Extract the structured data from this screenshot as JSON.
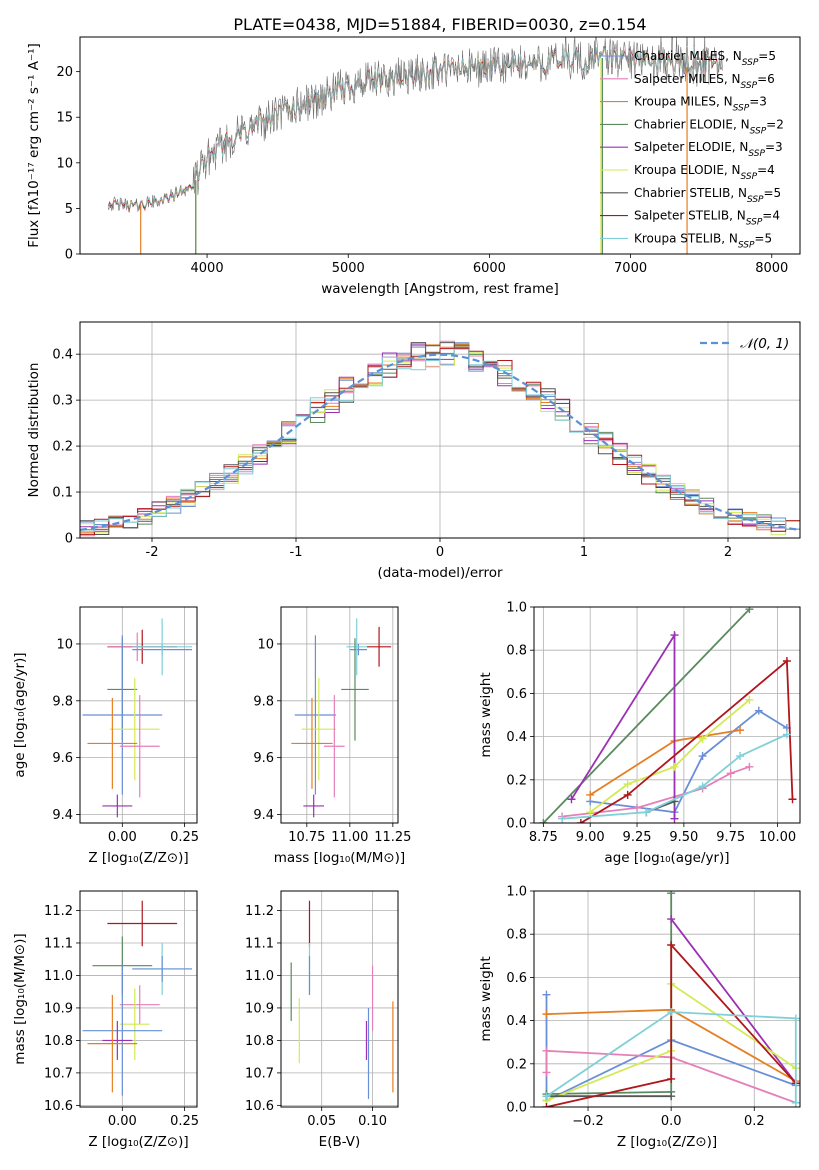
{
  "figure": {
    "title": "PLATE=0438, MJD=51884, FIBERID=0030, z=0.154"
  },
  "legend_colors": [
    "#6a8fd8",
    "#e57fb9",
    "#e67e22",
    "#5a8a5e",
    "#9b30b5",
    "#d3ea55",
    "#555555",
    "#b0161c",
    "#7fd0d8"
  ],
  "chart_data": [
    {
      "id": "spectrum",
      "type": "line",
      "xlabel": "wavelength [Angstrom, rest frame]",
      "ylabel": "Flux [fλ10⁻¹⁷ erg cm⁻² s⁻¹ A⁻¹]",
      "xlim": [
        3100,
        8200
      ],
      "ylim": [
        0,
        23.8
      ],
      "xticks": [
        4000,
        5000,
        6000,
        7000,
        8000
      ],
      "yticks": [
        0,
        5,
        10,
        15,
        20
      ],
      "grid": false,
      "legend_position": "top-right",
      "series": [
        {
          "name": "Chabrier MILES, N_SSP=5",
          "legend": "Chabrier MILES, N",
          "n": "5",
          "color": "#6a8fd8"
        },
        {
          "name": "Salpeter MILES, N_SSP=6",
          "legend": "Salpeter MILES, N",
          "n": "6",
          "color": "#e57fb9"
        },
        {
          "name": "Kroupa MILES, N_SSP=3",
          "legend": "Kroupa MILES, N",
          "n": "3",
          "color": "#e67e22"
        },
        {
          "name": "Chabrier ELODIE, N_SSP=2",
          "legend": "Chabrier ELODIE, N",
          "n": "2",
          "color": "#5a8a5e"
        },
        {
          "name": "Salpeter ELODIE, N_SSP=3",
          "legend": "Salpeter ELODIE, N",
          "n": "3",
          "color": "#9b30b5"
        },
        {
          "name": "Kroupa ELODIE, N_SSP=4",
          "legend": "Kroupa ELODIE, N",
          "n": "4",
          "color": "#d3ea55"
        },
        {
          "name": "Chabrier STELIB, N_SSP=5",
          "legend": "Chabrier STELIB, N",
          "n": "5",
          "color": "#555555"
        },
        {
          "name": "Salpeter STELIB, N_SSP=4",
          "legend": "Salpeter STELIB, N",
          "n": "4",
          "color": "#b0161c"
        },
        {
          "name": "Kroupa STELIB, N_SSP=5",
          "legend": "Kroupa STELIB, N",
          "n": "5",
          "color": "#7fd0d8"
        }
      ],
      "continuum_x": [
        3300,
        3500,
        3700,
        3900,
        4000,
        4200,
        4400,
        4600,
        4800,
        5000,
        5200,
        5400,
        5600,
        5800,
        6000,
        6200,
        6400,
        6600,
        6800,
        7000,
        7200,
        7400
      ],
      "continuum_y": [
        5.5,
        5.3,
        6.0,
        7.5,
        10.5,
        13.0,
        14.5,
        16.0,
        17.0,
        18.5,
        19.0,
        19.5,
        20.0,
        20.3,
        20.5,
        20.7,
        21.0,
        21.2,
        21.5,
        21.3,
        21.0,
        20.5
      ],
      "cutoff_lines": [
        {
          "x": 3530,
          "color": "#e67e22"
        },
        {
          "x": 3920,
          "color": "#d3ea55"
        },
        {
          "x": 3920,
          "color": "#5a8a5e"
        },
        {
          "x": 6790,
          "color": "#d3ea55"
        },
        {
          "x": 6800,
          "color": "#5a8a5e"
        },
        {
          "x": 7400,
          "color": "#e67e22"
        }
      ]
    },
    {
      "id": "residuals",
      "type": "line",
      "xlabel": "(data-model)/error",
      "ylabel": "Normed distribution",
      "xlim": [
        -2.5,
        2.5
      ],
      "ylim": [
        0,
        0.47
      ],
      "xticks": [
        -2,
        -1,
        0,
        1,
        2
      ],
      "yticks": [
        0.0,
        0.1,
        0.2,
        0.3,
        0.4
      ],
      "grid": true,
      "legend_position": "top-right",
      "reference": {
        "name": "𝒩(0, 1)",
        "mean": 0,
        "std": 1,
        "color": "#5b8fd8"
      },
      "bin_width": 0.1,
      "series_colors": [
        "#6a8fd8",
        "#e57fb9",
        "#e67e22",
        "#5a8a5e",
        "#9b30b5",
        "#d3ea55",
        "#555555",
        "#b0161c",
        "#7fd0d8"
      ]
    },
    {
      "id": "age_vs_Z",
      "type": "scatter",
      "xlabel": "Z [log₁₀(Z/Z⊙)]",
      "ylabel": "age  [log₁₀(age/yr)]",
      "xlim": [
        -0.17,
        0.3
      ],
      "ylim": [
        9.37,
        10.13
      ],
      "xticks": [
        0.0,
        0.25
      ],
      "xticklabels": [
        "0.00",
        "0.25"
      ],
      "yticks": [
        9.4,
        9.6,
        9.8,
        10.0
      ],
      "grid": true,
      "errorbars": [
        {
          "color": "#b0161c",
          "x": 0.08,
          "xerr": 0.14,
          "y": 9.99,
          "yerr": 0.06
        },
        {
          "color": "#e57fb9",
          "x": 0.06,
          "xerr": 0.12,
          "y": 9.99,
          "yerr": 0.05
        },
        {
          "color": "#6a8fd8",
          "x": 0.16,
          "xerr": 0.12,
          "y": 9.98,
          "yerr": 0.02
        },
        {
          "color": "#7fd0d8",
          "x": 0.16,
          "xerr": 0.12,
          "y": 9.99,
          "yerr": 0.1
        },
        {
          "color": "#5a8a5e",
          "x": 0.0,
          "xerr": 0.06,
          "y": 9.84,
          "yerr": 0.18
        },
        {
          "color": "#6a8fd8",
          "x": 0.0,
          "xerr": 0.16,
          "y": 9.75,
          "yerr": 0.28
        },
        {
          "color": "#d3ea55",
          "x": 0.05,
          "xerr": 0.1,
          "y": 9.7,
          "yerr": 0.18
        },
        {
          "color": "#e67e22",
          "x": -0.04,
          "xerr": 0.1,
          "y": 9.65,
          "yerr": 0.16
        },
        {
          "color": "#e57fb9",
          "x": 0.07,
          "xerr": 0.08,
          "y": 9.64,
          "yerr": 0.18
        },
        {
          "color": "#9b30b5",
          "x": -0.02,
          "xerr": 0.06,
          "y": 9.43,
          "yerr": 0.04
        }
      ]
    },
    {
      "id": "age_vs_mass",
      "type": "scatter",
      "xlabel": "mass [log₁₀(M/M⊙)]",
      "ylabel": "",
      "xlim": [
        10.6,
        11.28
      ],
      "ylim": [
        9.37,
        10.13
      ],
      "xticks": [
        10.75,
        11.0,
        11.25
      ],
      "xticklabels": [
        "10.75",
        "11.00",
        "11.25"
      ],
      "yticks": [
        9.4,
        9.6,
        9.8,
        10.0
      ],
      "grid": true,
      "errorbars": [
        {
          "color": "#b0161c",
          "x": 11.17,
          "xerr": 0.07,
          "y": 9.99,
          "yerr": 0.07
        },
        {
          "color": "#6a8fd8",
          "x": 11.05,
          "xerr": 0.05,
          "y": 9.98,
          "yerr": 0.02
        },
        {
          "color": "#7fd0d8",
          "x": 11.04,
          "xerr": 0.06,
          "y": 9.99,
          "yerr": 0.1
        },
        {
          "color": "#5a8a5e",
          "x": 11.03,
          "xerr": 0.08,
          "y": 9.84,
          "yerr": 0.18
        },
        {
          "color": "#6a8fd8",
          "x": 10.8,
          "xerr": 0.12,
          "y": 9.75,
          "yerr": 0.28
        },
        {
          "color": "#d3ea55",
          "x": 10.82,
          "xerr": 0.1,
          "y": 9.7,
          "yerr": 0.18
        },
        {
          "color": "#e67e22",
          "x": 10.78,
          "xerr": 0.12,
          "y": 9.65,
          "yerr": 0.16
        },
        {
          "color": "#e57fb9",
          "x": 10.91,
          "xerr": 0.06,
          "y": 9.64,
          "yerr": 0.18
        },
        {
          "color": "#9b30b5",
          "x": 10.79,
          "xerr": 0.06,
          "y": 9.43,
          "yerr": 0.04
        }
      ]
    },
    {
      "id": "weight_vs_age",
      "type": "line",
      "xlabel": "age  [log₁₀(age/yr)]",
      "ylabel": "mass weight",
      "xlim": [
        8.7,
        10.12
      ],
      "ylim": [
        0,
        1.0
      ],
      "xticks": [
        8.75,
        9.0,
        9.25,
        9.5,
        9.75,
        10.0
      ],
      "xticklabels": [
        "8.75",
        "9.00",
        "9.25",
        "9.50",
        "9.75",
        "10.00"
      ],
      "yticks": [
        0.0,
        0.2,
        0.4,
        0.6,
        0.8,
        1.0
      ],
      "yticklabels": [
        "0.0",
        "0.2",
        "0.4",
        "0.6",
        "0.8",
        "1.0"
      ],
      "grid": true,
      "series": [
        {
          "color": "#6a8fd8",
          "points": [
            [
              9.0,
              0.1
            ],
            [
              9.45,
              0.05
            ],
            [
              9.6,
              0.31
            ],
            [
              9.9,
              0.52
            ],
            [
              10.05,
              0.44
            ]
          ]
        },
        {
          "color": "#e57fb9",
          "points": [
            [
              8.85,
              0.03
            ],
            [
              9.25,
              0.07
            ],
            [
              9.6,
              0.16
            ],
            [
              9.75,
              0.23
            ],
            [
              9.85,
              0.26
            ]
          ]
        },
        {
          "color": "#e67e22",
          "points": [
            [
              9.0,
              0.13
            ],
            [
              9.45,
              0.38
            ],
            [
              9.8,
              0.43
            ]
          ]
        },
        {
          "color": "#5a8a5e",
          "points": [
            [
              8.75,
              0.0
            ],
            [
              9.85,
              0.99
            ]
          ]
        },
        {
          "color": "#9b30b5",
          "points": [
            [
              8.9,
              0.11
            ],
            [
              9.45,
              0.87
            ],
            [
              9.45,
              0.02
            ]
          ]
        },
        {
          "color": "#d3ea55",
          "points": [
            [
              9.0,
              0.05
            ],
            [
              9.2,
              0.18
            ],
            [
              9.45,
              0.26
            ],
            [
              9.6,
              0.39
            ],
            [
              9.85,
              0.57
            ]
          ]
        },
        {
          "color": "#555555",
          "points": [
            [
              9.3,
              0.05
            ],
            [
              9.45,
              0.1
            ]
          ]
        },
        {
          "color": "#b0161c",
          "points": [
            [
              8.95,
              0.0
            ],
            [
              9.2,
              0.13
            ],
            [
              10.05,
              0.75
            ],
            [
              10.08,
              0.11
            ]
          ]
        },
        {
          "color": "#7fd0d8",
          "points": [
            [
              8.85,
              0.02
            ],
            [
              9.3,
              0.05
            ],
            [
              9.6,
              0.17
            ],
            [
              9.8,
              0.31
            ],
            [
              10.05,
              0.41
            ]
          ]
        }
      ]
    },
    {
      "id": "mass_vs_Z",
      "type": "scatter",
      "xlabel": "Z [log₁₀(Z/Z⊙)]",
      "ylabel": "mass [log₁₀(M/M⊙)]",
      "xlim": [
        -0.17,
        0.3
      ],
      "ylim": [
        10.595,
        11.26
      ],
      "xticks": [
        0.0,
        0.25
      ],
      "xticklabels": [
        "0.00",
        "0.25"
      ],
      "yticks": [
        10.6,
        10.7,
        10.8,
        10.9,
        11.0,
        11.1,
        11.2
      ],
      "yticklabels": [
        "10.6",
        "10.7",
        "10.8",
        "10.9",
        "11.0",
        "11.1",
        "11.2"
      ],
      "grid": true,
      "errorbars": [
        {
          "color": "#b0161c",
          "x": 0.08,
          "xerr": 0.14,
          "y": 11.16,
          "yerr": 0.07
        },
        {
          "color": "#5a8a5e",
          "x": 0.0,
          "xerr": 0.12,
          "y": 11.03,
          "yerr": 0.09
        },
        {
          "color": "#7fd0d8",
          "x": 0.16,
          "xerr": 0.12,
          "y": 11.02,
          "yerr": 0.08
        },
        {
          "color": "#6a8fd8",
          "x": 0.16,
          "xerr": 0.12,
          "y": 11.02,
          "yerr": 0.04
        },
        {
          "color": "#e57fb9",
          "x": 0.07,
          "xerr": 0.08,
          "y": 10.91,
          "yerr": 0.06
        },
        {
          "color": "#d3ea55",
          "x": 0.05,
          "xerr": 0.06,
          "y": 10.85,
          "yerr": 0.11
        },
        {
          "color": "#6a8fd8",
          "x": 0.0,
          "xerr": 0.16,
          "y": 10.83,
          "yerr": 0.2
        },
        {
          "color": "#9b30b5",
          "x": -0.02,
          "xerr": 0.06,
          "y": 10.8,
          "yerr": 0.06
        },
        {
          "color": "#e67e22",
          "x": -0.04,
          "xerr": 0.1,
          "y": 10.79,
          "yerr": 0.15
        }
      ]
    },
    {
      "id": "mass_vs_ebv",
      "type": "scatter",
      "xlabel": "E(B-V)",
      "ylabel": "",
      "xlim": [
        0.01,
        0.125
      ],
      "ylim": [
        10.595,
        11.26
      ],
      "xticks": [
        0.05,
        0.1
      ],
      "xticklabels": [
        "0.05",
        "0.10"
      ],
      "yticks": [
        10.6,
        10.7,
        10.8,
        10.9,
        11.0,
        11.1,
        11.2
      ],
      "yticklabels": [
        "10.6",
        "10.7",
        "10.8",
        "10.9",
        "11.0",
        "11.1",
        "11.2"
      ],
      "grid": true,
      "errorbars": [
        {
          "color": "#b0161c",
          "x": 0.038,
          "xerr": 0,
          "y": 11.16,
          "yerr": 0.07
        },
        {
          "color": "#5a8a5e",
          "x": 0.02,
          "xerr": 0,
          "y": 10.95,
          "yerr": 0.09
        },
        {
          "color": "#7fd0d8",
          "x": 0.038,
          "xerr": 0,
          "y": 11.02,
          "yerr": 0.08
        },
        {
          "color": "#6a8fd8",
          "x": 0.038,
          "xerr": 0,
          "y": 11.0,
          "yerr": 0.06
        },
        {
          "color": "#e57fb9",
          "x": 0.1,
          "xerr": 0,
          "y": 10.93,
          "yerr": 0.1
        },
        {
          "color": "#d3ea55",
          "x": 0.028,
          "xerr": 0,
          "y": 10.83,
          "yerr": 0.1
        },
        {
          "color": "#6a8fd8",
          "x": 0.096,
          "xerr": 0,
          "y": 10.76,
          "yerr": 0.14
        },
        {
          "color": "#9b30b5",
          "x": 0.094,
          "xerr": 0,
          "y": 10.8,
          "yerr": 0.06
        },
        {
          "color": "#e67e22",
          "x": 0.12,
          "xerr": 0,
          "y": 10.78,
          "yerr": 0.14
        }
      ]
    },
    {
      "id": "weight_vs_Z",
      "type": "line",
      "xlabel": "Z [log₁₀(Z/Z⊙)]",
      "ylabel": "mass weight",
      "xlim": [
        -0.33,
        0.31
      ],
      "ylim": [
        0,
        1.0
      ],
      "xticks": [
        -0.2,
        0.0,
        0.2
      ],
      "xticklabels": [
        "−0.2",
        "0.0",
        "0.2"
      ],
      "yticks": [
        0.0,
        0.2,
        0.4,
        0.6,
        0.8,
        1.0
      ],
      "yticklabels": [
        "0.0",
        "0.2",
        "0.4",
        "0.6",
        "0.8",
        "1.0"
      ],
      "grid": true,
      "series": [
        {
          "color": "#6a8fd8",
          "points": [
            [
              -0.3,
              0.52
            ],
            [
              -0.3,
              0.03
            ],
            [
              0.0,
              0.31
            ],
            [
              0.3,
              0.1
            ]
          ]
        },
        {
          "color": "#e57fb9",
          "points": [
            [
              -0.3,
              0.16
            ],
            [
              -0.3,
              0.26
            ],
            [
              0.0,
              0.23
            ],
            [
              0.3,
              0.02
            ]
          ]
        },
        {
          "color": "#e67e22",
          "points": [
            [
              -0.3,
              0.43
            ],
            [
              0.0,
              0.45
            ],
            [
              0.3,
              0.12
            ]
          ]
        },
        {
          "color": "#5a8a5e",
          "points": [
            [
              -0.3,
              0.06
            ],
            [
              0.0,
              0.07
            ],
            [
              0.0,
              0.99
            ]
          ]
        },
        {
          "color": "#9b30b5",
          "points": [
            [
              0.0,
              0.87
            ],
            [
              0.3,
              0.11
            ]
          ]
        },
        {
          "color": "#d3ea55",
          "points": [
            [
              -0.3,
              0.03
            ],
            [
              0.0,
              0.26
            ],
            [
              0.0,
              0.57
            ],
            [
              0.3,
              0.18
            ]
          ]
        },
        {
          "color": "#555555",
          "points": [
            [
              -0.3,
              0.05
            ],
            [
              0.0,
              0.05
            ]
          ]
        },
        {
          "color": "#b0161c",
          "points": [
            [
              -0.3,
              0.0
            ],
            [
              0.0,
              0.13
            ],
            [
              0.0,
              0.75
            ],
            [
              0.3,
              0.11
            ]
          ]
        },
        {
          "color": "#7fd0d8",
          "points": [
            [
              -0.3,
              0.05
            ],
            [
              0.0,
              0.44
            ],
            [
              0.3,
              0.41
            ],
            [
              0.3,
              0.02
            ]
          ]
        }
      ]
    }
  ]
}
